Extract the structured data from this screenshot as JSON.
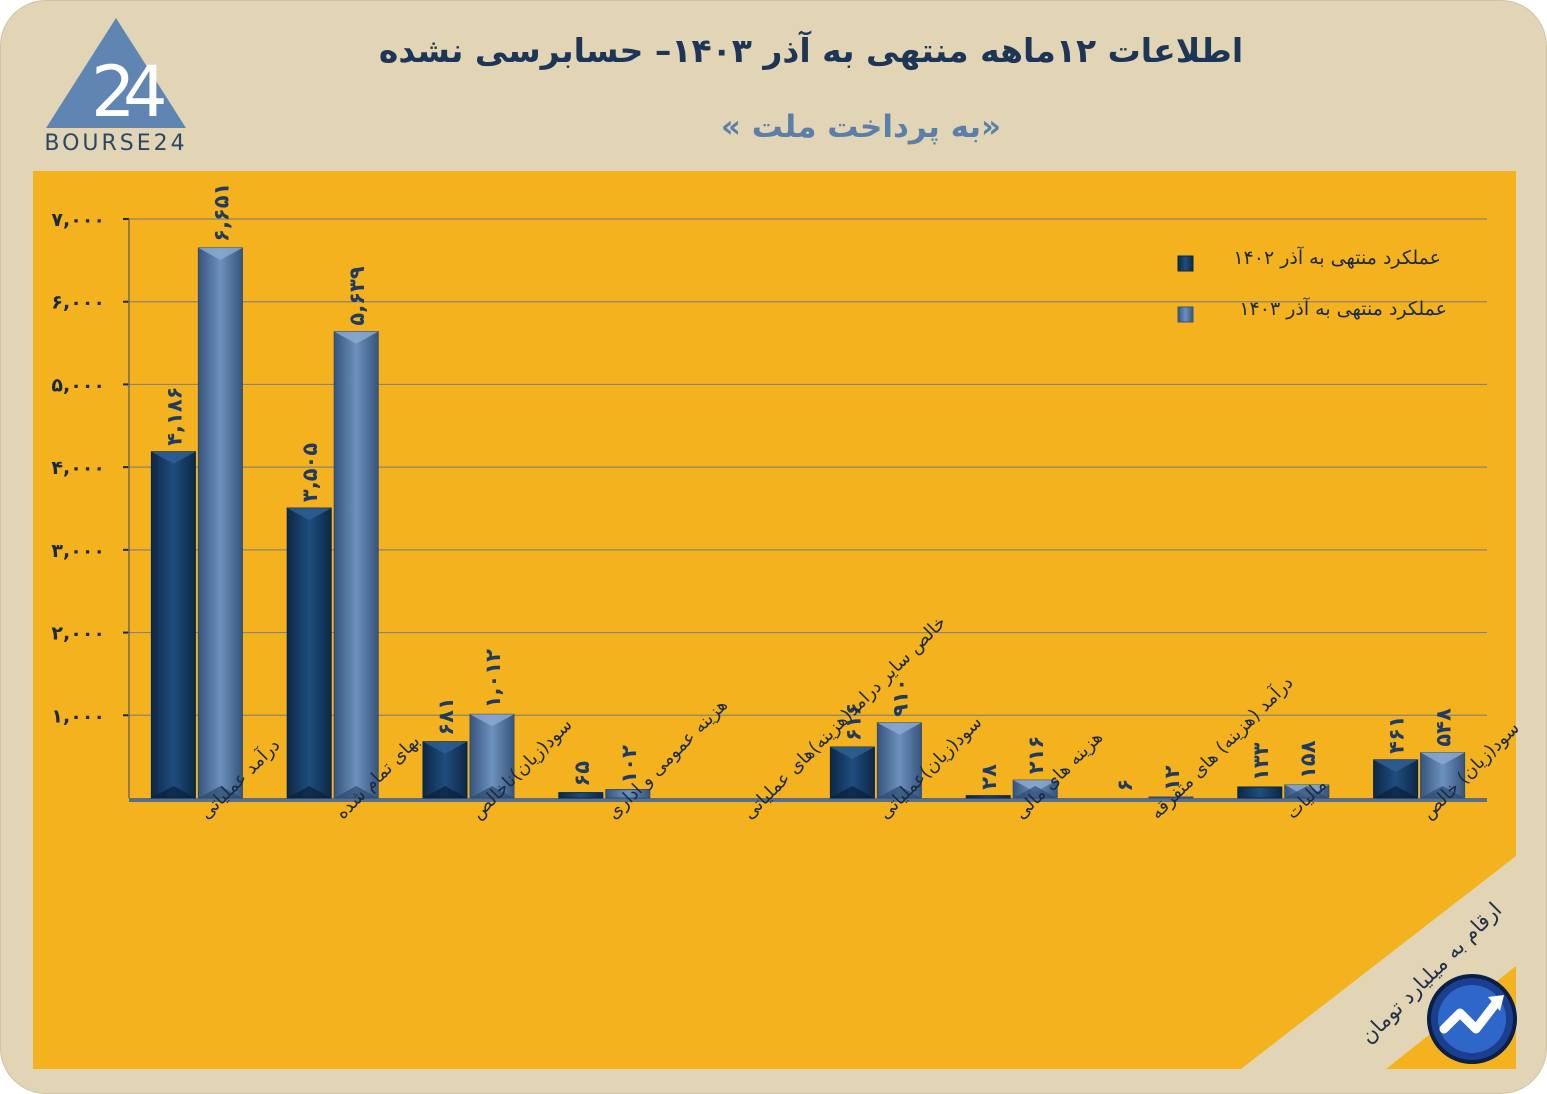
{
  "header": {
    "title": "اطلاعات ۱۲ماهه منتهی به آذر ۱۴۰۳– حسابرسی نشده",
    "subtitle": "«به پرداخت ملت »",
    "brand": "BOURSE24"
  },
  "note": "ارقام به میلیارد تومان",
  "colors": {
    "background": "#e2d5b6",
    "panel": "#f4b21e",
    "series_1402": "#163a63",
    "series_1403": "#4f73a1",
    "title": "#1d3557"
  },
  "icons": [
    "bourse24-logo",
    "growth-arrow-icon"
  ],
  "chart_data": {
    "type": "bar",
    "ylim": [
      0,
      7000
    ],
    "yticks": [
      1000,
      2000,
      3000,
      4000,
      5000,
      6000,
      7000
    ],
    "ytick_labels": [
      "۱,۰۰۰",
      "۲,۰۰۰",
      "۳,۰۰۰",
      "۴,۰۰۰",
      "۵,۰۰۰",
      "۶,۰۰۰",
      "۷,۰۰۰"
    ],
    "grid": true,
    "legend_position": "top-right",
    "categories": [
      "درآمد عملیاتی",
      "بهای تمام شده",
      "سود(زیان)ناخالص",
      "هزینه عمومی و اداری",
      "خالص سایر درامد(هزینه)های عملیاتی",
      "سود(زیان)عملیاتی",
      "هزینه های مالی",
      "درآمد (هزینه) های متفرقه",
      "مالیات",
      "سود(زیان) خالص"
    ],
    "series": [
      {
        "name": "عملکرد منتهی به آذر ۱۴۰۲",
        "values": [
          4186,
          3505,
          681,
          65,
          0,
          616,
          28,
          6,
          133,
          461
        ],
        "labels": [
          "۴,۱۸۶",
          "۳,۵۰۵",
          "۶۸۱",
          "۶۵",
          "",
          "۶۱۶",
          "۲۸",
          "۶",
          "۱۳۳",
          "۴۶۱"
        ]
      },
      {
        "name": "عملکرد منتهی به آذر ۱۴۰۳",
        "values": [
          6651,
          5639,
          1012,
          102,
          0,
          910,
          216,
          12,
          158,
          548
        ],
        "labels": [
          "۶,۶۵۱",
          "۵,۶۳۹",
          "۱,۰۱۲",
          "۱۰۲",
          "",
          "۹۱۰",
          "۲۱۶",
          "۱۲",
          "۱۵۸",
          "۵۴۸"
        ]
      }
    ]
  }
}
